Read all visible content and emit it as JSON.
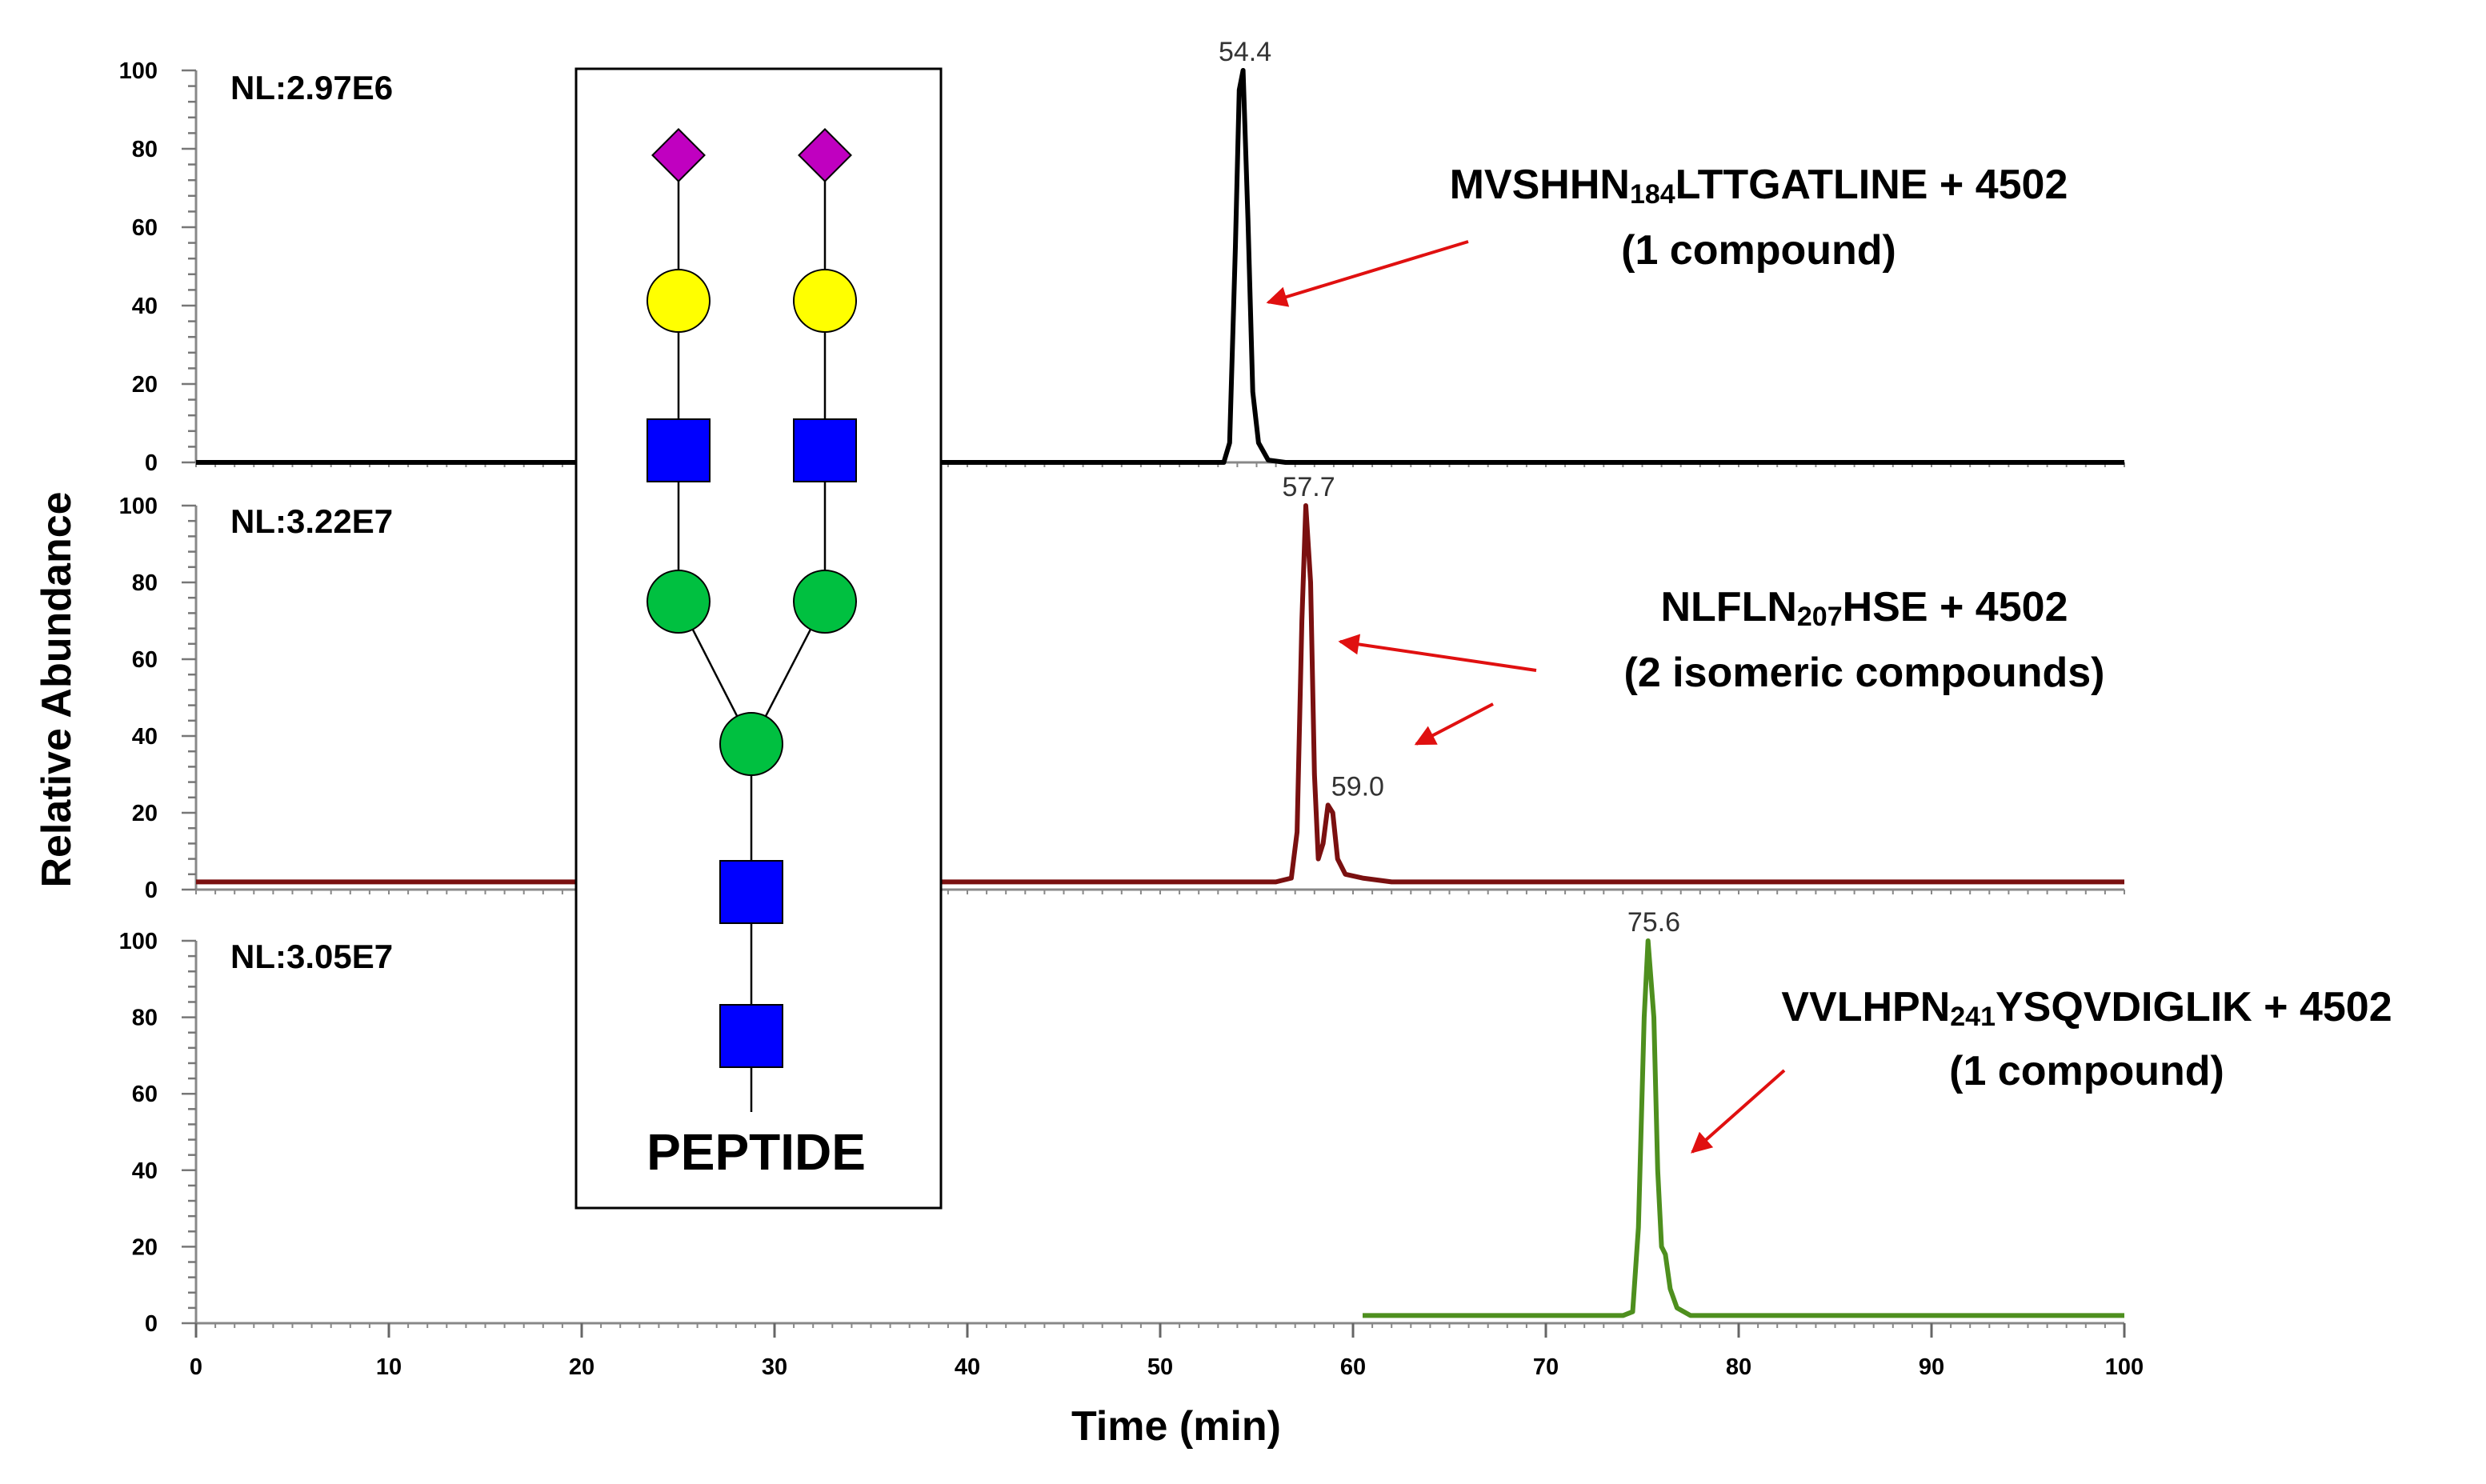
{
  "chart_data": {
    "type": "line",
    "xlabel": "Time (min)",
    "ylabel": "Relative Abundance",
    "xlim": [
      0,
      100
    ],
    "ylim": [
      0,
      100
    ],
    "x_ticks": [
      "0",
      "10",
      "20",
      "30",
      "40",
      "50",
      "60",
      "70",
      "80",
      "90",
      "100"
    ],
    "y_ticks": [
      "0",
      "20",
      "40",
      "60",
      "80",
      "100"
    ],
    "panels": [
      {
        "name": "MVSHHN184LTTGATLINE",
        "nl": "NL:2.97E6",
        "color": "#000000",
        "peak_labels": [
          {
            "x": 54.4,
            "y": 100,
            "text": "54.4"
          }
        ],
        "annotation": {
          "pre": "MVSHHN",
          "sub": "184",
          "post": "LTTGATLINE + 4502",
          "line2": "(1 compound)"
        },
        "points": [
          [
            0,
            0
          ],
          [
            40,
            0
          ],
          [
            53.3,
            0
          ],
          [
            53.6,
            5
          ],
          [
            53.9,
            55
          ],
          [
            54.1,
            95
          ],
          [
            54.3,
            100
          ],
          [
            54.55,
            62
          ],
          [
            54.8,
            18
          ],
          [
            55.1,
            5
          ],
          [
            55.6,
            0.6
          ],
          [
            56.5,
            0
          ],
          [
            64.5,
            0
          ],
          [
            64.5,
            0
          ],
          [
            100,
            0
          ]
        ]
      },
      {
        "name": "NLFLN207HSE",
        "nl": "NL:3.22E7",
        "color": "#7a1010",
        "peak_labels": [
          {
            "x": 57.7,
            "y": 100,
            "text": "57.7"
          },
          {
            "x": 59.0,
            "y": 22,
            "text": "59.0"
          }
        ],
        "annotation": {
          "pre": "NLFLN",
          "sub": "207",
          "post": "HSE + 4502",
          "line2": "(2 isomeric compounds)"
        },
        "points": [
          [
            0,
            2
          ],
          [
            56,
            2
          ],
          [
            56.8,
            3
          ],
          [
            57.1,
            15
          ],
          [
            57.35,
            70
          ],
          [
            57.55,
            100
          ],
          [
            57.8,
            80
          ],
          [
            58.0,
            30
          ],
          [
            58.2,
            8
          ],
          [
            58.45,
            12
          ],
          [
            58.7,
            22
          ],
          [
            58.95,
            20
          ],
          [
            59.2,
            8
          ],
          [
            59.6,
            4
          ],
          [
            60.5,
            3
          ],
          [
            62,
            2
          ],
          [
            100,
            2
          ]
        ]
      },
      {
        "name": "VVLHPN241YSQVDIGLIK",
        "nl": "NL:3.05E7",
        "color": "#4e8f1e",
        "peak_labels": [
          {
            "x": 75.6,
            "y": 100,
            "text": "75.6"
          }
        ],
        "annotation": {
          "pre": "VVLHPN",
          "sub": "241",
          "post": "YSQVDIGLIK + 4502",
          "line2": "(1 compound)"
        },
        "points": [
          [
            60.5,
            2
          ],
          [
            74,
            2
          ],
          [
            74.5,
            3
          ],
          [
            74.8,
            25
          ],
          [
            75.1,
            80
          ],
          [
            75.3,
            100
          ],
          [
            75.6,
            80
          ],
          [
            75.8,
            40
          ],
          [
            76.0,
            20
          ],
          [
            76.2,
            18
          ],
          [
            76.45,
            9
          ],
          [
            76.8,
            4
          ],
          [
            77.5,
            2
          ],
          [
            100,
            2
          ]
        ]
      }
    ]
  },
  "glycan": {
    "label": "PEPTIDE",
    "colors": {
      "neu5ac": "#c000c0",
      "galactose": "#ffff00",
      "glcnac": "#0000ff",
      "mannose": "#00c040"
    }
  }
}
